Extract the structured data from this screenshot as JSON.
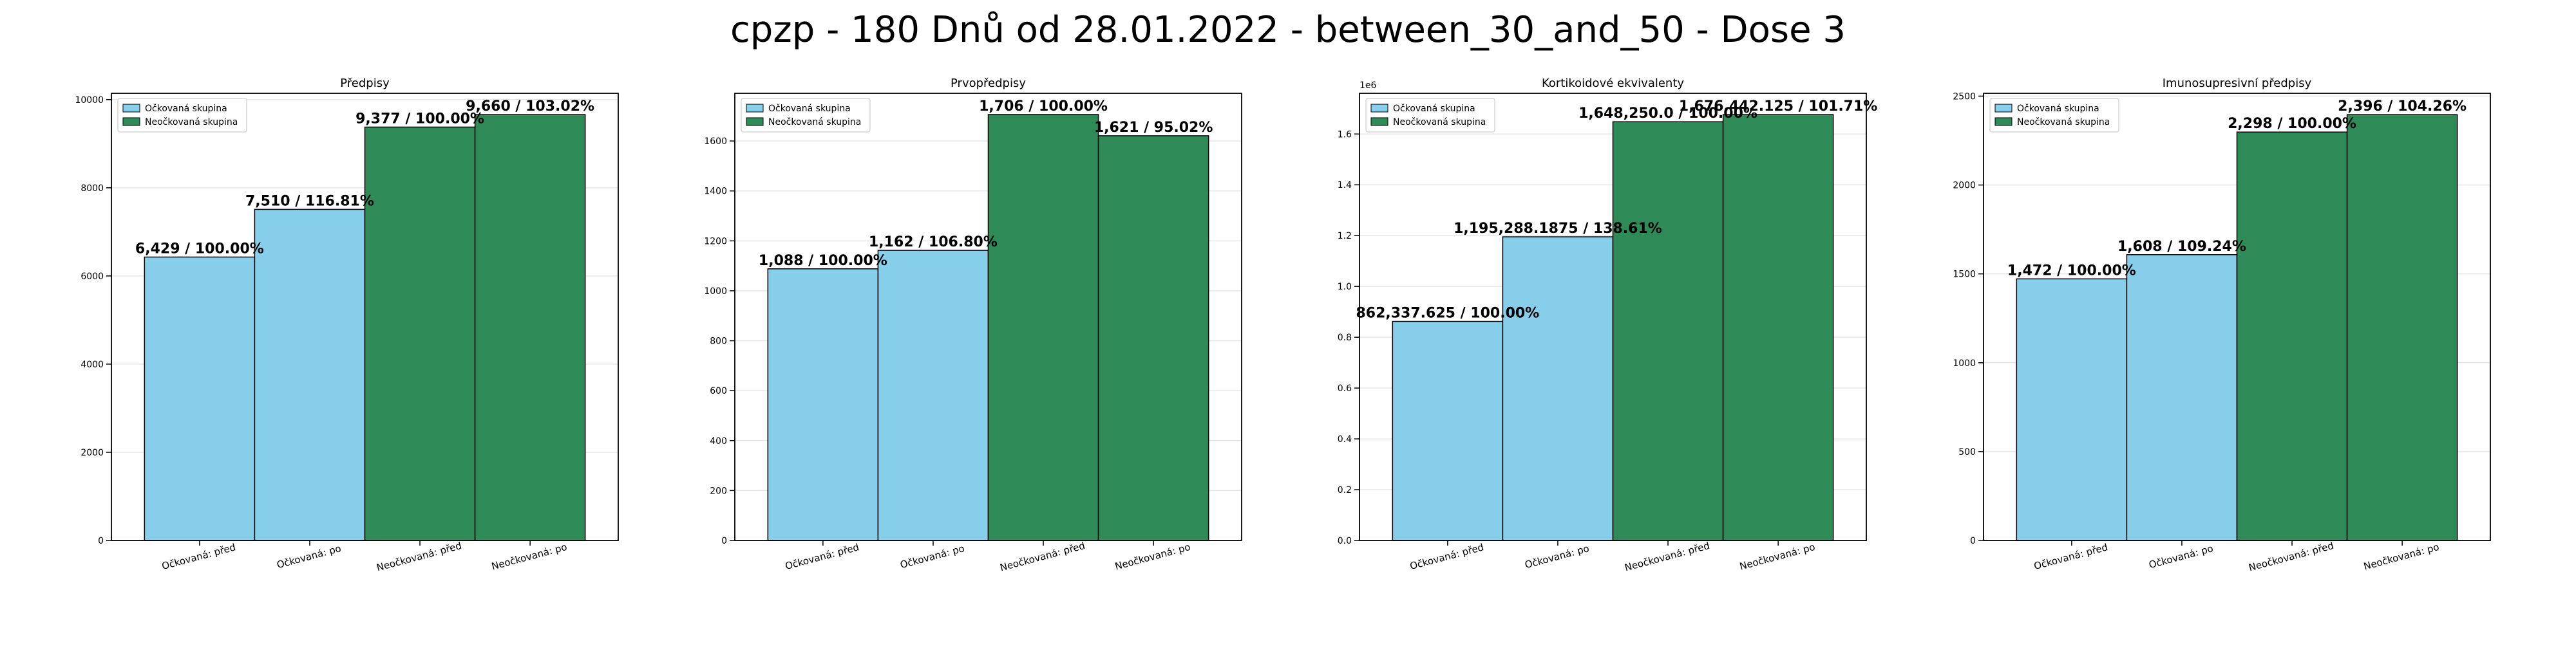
{
  "suptitle": "cpzp - 180 Dnů od 28.01.2022 - between_30_and_50 - Dose 3",
  "legend": {
    "vaccinated": "Očkovaná skupina",
    "unvaccinated": "Neočkovaná skupina"
  },
  "colors": {
    "vaccinated": "#87ceeb",
    "unvaccinated": "#2e8b57",
    "edge": "#000000",
    "grid": "#e6e6e6"
  },
  "chart_data": [
    {
      "type": "bar",
      "title": "Předpisy",
      "categories": [
        "Očkovaná: před",
        "Očkovaná: po",
        "Neočkovaná: před",
        "Neočkovaná: po"
      ],
      "values": [
        6429,
        7510,
        9377,
        9660
      ],
      "labels": [
        "6,429 / 100.00%",
        "7,510 / 116.81%",
        "9,377 / 100.00%",
        "9,660 / 103.02%"
      ],
      "groups": [
        "vaccinated",
        "vaccinated",
        "unvaccinated",
        "unvaccinated"
      ],
      "ylim": [
        0,
        10143
      ],
      "yticks": [
        0,
        2000,
        4000,
        6000,
        8000,
        10000
      ],
      "ytick_labels": [
        "0",
        "2000",
        "4000",
        "6000",
        "8000",
        "10000"
      ],
      "exponent_label": "",
      "grid": true,
      "legend_position": "upper left"
    },
    {
      "type": "bar",
      "title": "Prvopředpisy",
      "categories": [
        "Očkovaná: před",
        "Očkovaná: po",
        "Neočkovaná: před",
        "Neočkovaná: po"
      ],
      "values": [
        1088,
        1162,
        1706,
        1621
      ],
      "labels": [
        "1,088 / 100.00%",
        "1,162 / 106.80%",
        "1,706 / 100.00%",
        "1,621 / 95.02%"
      ],
      "groups": [
        "vaccinated",
        "vaccinated",
        "unvaccinated",
        "unvaccinated"
      ],
      "ylim": [
        0,
        1791
      ],
      "yticks": [
        0,
        200,
        400,
        600,
        800,
        1000,
        1200,
        1400,
        1600
      ],
      "ytick_labels": [
        "0",
        "200",
        "400",
        "600",
        "800",
        "1000",
        "1200",
        "1400",
        "1600"
      ],
      "exponent_label": "",
      "grid": true,
      "legend_position": "upper left"
    },
    {
      "type": "bar",
      "title": "Kortikoidové ekvivalenty",
      "categories": [
        "Očkovaná: před",
        "Očkovaná: po",
        "Neočkovaná: před",
        "Neočkovaná: po"
      ],
      "values": [
        862337.625,
        1195288.1875,
        1648250.0,
        1676442.125
      ],
      "labels": [
        "862,337.625 / 100.00%",
        "1,195,288.1875 / 138.61%",
        "1,648,250.0 / 100.00%",
        "1,676,442.125 / 101.71%"
      ],
      "groups": [
        "vaccinated",
        "vaccinated",
        "unvaccinated",
        "unvaccinated"
      ],
      "ylim": [
        0,
        1760264
      ],
      "yticks": [
        0,
        200000,
        400000,
        600000,
        800000,
        1000000,
        1200000,
        1400000,
        1600000
      ],
      "ytick_labels": [
        "0.0",
        "0.2",
        "0.4",
        "0.6",
        "0.8",
        "1.0",
        "1.2",
        "1.4",
        "1.6"
      ],
      "exponent_label": "1e6",
      "grid": true,
      "legend_position": "upper left"
    },
    {
      "type": "bar",
      "title": "Imunosupresivní předpisy",
      "categories": [
        "Očkovaná: před",
        "Očkovaná: po",
        "Neočkovaná: před",
        "Neočkovaná: po"
      ],
      "values": [
        1472,
        1608,
        2298,
        2396
      ],
      "labels": [
        "1,472 / 100.00%",
        "1,608 / 109.24%",
        "2,298 / 100.00%",
        "2,396 / 104.26%"
      ],
      "groups": [
        "vaccinated",
        "vaccinated",
        "unvaccinated",
        "unvaccinated"
      ],
      "ylim": [
        0,
        2516
      ],
      "yticks": [
        0,
        500,
        1000,
        1500,
        2000,
        2500
      ],
      "ytick_labels": [
        "0",
        "500",
        "1000",
        "1500",
        "2000",
        "2500"
      ],
      "exponent_label": "",
      "grid": true,
      "legend_position": "upper left"
    }
  ]
}
